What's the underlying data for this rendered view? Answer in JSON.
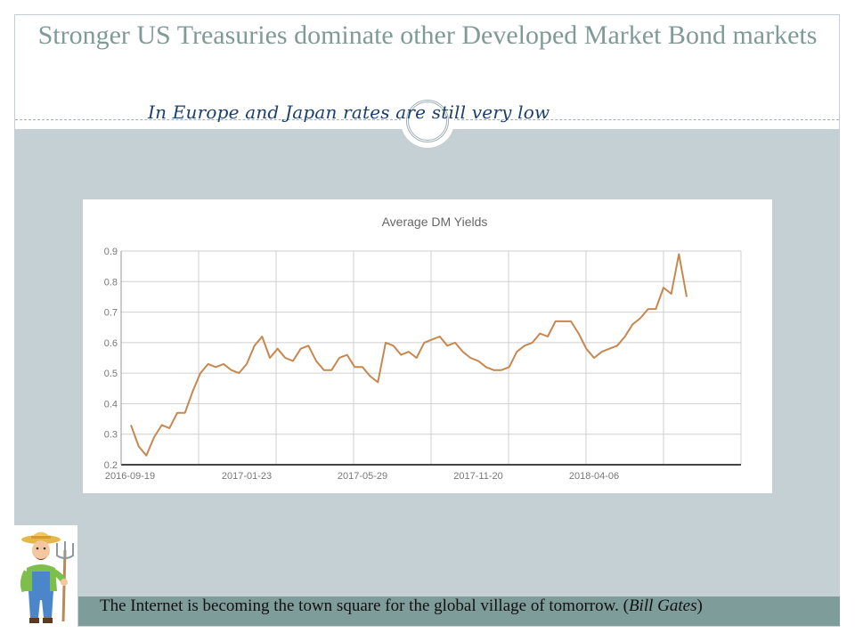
{
  "slide": {
    "title": "Stronger US Treasuries dominate other Developed Market Bond markets",
    "subtitle": "In Europe and Japan rates are still very low",
    "quote": {
      "text": "The Internet is becoming the town square for the global village of tomorrow. (",
      "author": "Bill Gates",
      "close": ")"
    }
  },
  "colors": {
    "title": "#7f9a97",
    "subtitle": "#1b3f6e",
    "band": "#c5d0d5",
    "quote_bar": "#7e9c9a",
    "line": "#c8874f"
  },
  "chart_data": {
    "type": "line",
    "title": "Average DM Yields",
    "xlabel": "",
    "ylabel": "",
    "ylim": [
      0.2,
      0.9
    ],
    "y_ticks": [
      "0.2",
      "0.3",
      "0.4",
      "0.5",
      "0.6",
      "0.7",
      "0.8",
      "0.9"
    ],
    "x_tick_labels": [
      "2016-09-19",
      "2017-01-23",
      "2017-05-29",
      "2017-11-20",
      "2018-04-06"
    ],
    "grid": true,
    "series": [
      {
        "name": "Average DM Yields",
        "values": [
          0.33,
          0.26,
          0.23,
          0.29,
          0.33,
          0.32,
          0.37,
          0.37,
          0.44,
          0.5,
          0.53,
          0.52,
          0.53,
          0.51,
          0.5,
          0.53,
          0.59,
          0.62,
          0.55,
          0.58,
          0.55,
          0.54,
          0.58,
          0.59,
          0.54,
          0.51,
          0.51,
          0.55,
          0.56,
          0.52,
          0.52,
          0.49,
          0.47,
          0.6,
          0.59,
          0.56,
          0.57,
          0.55,
          0.6,
          0.61,
          0.62,
          0.59,
          0.6,
          0.57,
          0.55,
          0.54,
          0.52,
          0.51,
          0.51,
          0.52,
          0.57,
          0.59,
          0.6,
          0.63,
          0.62,
          0.67,
          0.67,
          0.67,
          0.63,
          0.58,
          0.55,
          0.57,
          0.58,
          0.59,
          0.62,
          0.66,
          0.68,
          0.71,
          0.71,
          0.78,
          0.76,
          0.89,
          0.75
        ]
      }
    ]
  }
}
